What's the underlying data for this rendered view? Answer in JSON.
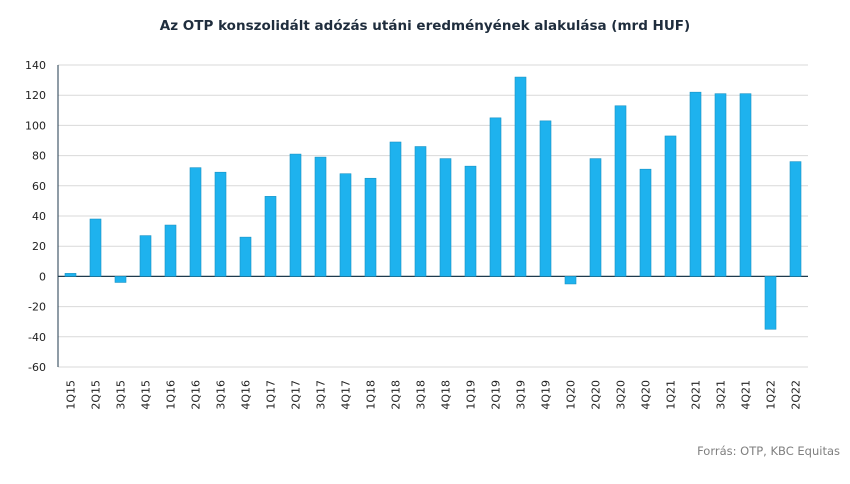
{
  "chart_data": {
    "type": "bar",
    "title": "Az OTP konszolidált adózás utáni eredményének  alakulása (mrd HUF)",
    "xlabel": "",
    "ylabel": "",
    "ylim": [
      -60,
      140
    ],
    "yticks": [
      -60,
      -40,
      -20,
      0,
      20,
      40,
      60,
      80,
      100,
      120,
      140
    ],
    "grid": true,
    "legend": "none",
    "bar_color": "#1EB2EE",
    "categories": [
      "1Q15",
      "2Q15",
      "3Q15",
      "4Q15",
      "1Q16",
      "2Q16",
      "3Q16",
      "4Q16",
      "1Q17",
      "2Q17",
      "3Q17",
      "4Q17",
      "1Q18",
      "2Q18",
      "3Q18",
      "4Q18",
      "1Q19",
      "2Q19",
      "3Q19",
      "4Q19",
      "1Q20",
      "2Q20",
      "3Q20",
      "4Q20",
      "1Q21",
      "2Q21",
      "3Q21",
      "4Q21",
      "1Q22",
      "2Q22"
    ],
    "values": [
      2,
      38,
      -4,
      27,
      34,
      72,
      69,
      26,
      53,
      81,
      79,
      68,
      65,
      89,
      86,
      78,
      73,
      105,
      132,
      103,
      -5,
      78,
      113,
      71,
      93,
      122,
      121,
      121,
      -35,
      76
    ]
  },
  "source": "Forrás: OTP, KBC Equitas"
}
